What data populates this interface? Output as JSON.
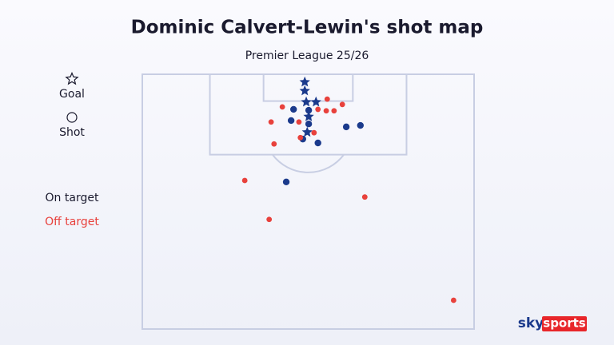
{
  "chart_data": {
    "type": "scatter",
    "title": "Dominic Calvert-Lewin's shot map",
    "subtitle": "Premier League 25/26",
    "xlim": [
      -34,
      34
    ],
    "ylim": [
      0,
      52.3
    ],
    "marker_legend": [
      {
        "label": "Goal",
        "marker": "star"
      },
      {
        "label": "Shot",
        "marker": "circle"
      }
    ],
    "series": [
      {
        "name": "On target",
        "color": "#1b3a8c",
        "x": [
          -0.7,
          -0.7,
          -0.4,
          1.6,
          0.1,
          -0.2,
          -3.0,
          0.1,
          -3.5,
          0.1,
          7.8,
          10.7,
          2.0,
          -1.1,
          -4.5
        ],
        "y": [
          1.6,
          3.4,
          5.7,
          5.7,
          8.7,
          11.9,
          7.2,
          7.4,
          9.5,
          10.2,
          10.8,
          10.5,
          14.1,
          13.3,
          22.1
        ],
        "marker": [
          "star",
          "star",
          "star",
          "star",
          "star",
          "star",
          "circle",
          "circle",
          "circle",
          "circle",
          "circle",
          "circle",
          "circle",
          "circle",
          "circle"
        ]
      },
      {
        "name": "Off target",
        "color": "#e8413c",
        "x": [
          -5.3,
          3.9,
          7.0,
          2.0,
          3.7,
          5.3,
          -7.6,
          -1.9,
          1.2,
          -7.0,
          -1.6,
          -13.0,
          11.6,
          -8.0,
          29.8
        ],
        "y": [
          6.7,
          5.1,
          6.2,
          7.2,
          7.5,
          7.5,
          9.8,
          9.8,
          12.0,
          14.3,
          13.0,
          21.8,
          25.2,
          29.8,
          46.4
        ],
        "marker": [
          "circle",
          "circle",
          "circle",
          "circle",
          "circle",
          "circle",
          "circle",
          "circle",
          "circle",
          "circle",
          "circle",
          "circle",
          "circle",
          "circle",
          "circle"
        ]
      }
    ],
    "logo": {
      "left": "sky",
      "right": "sports"
    }
  }
}
